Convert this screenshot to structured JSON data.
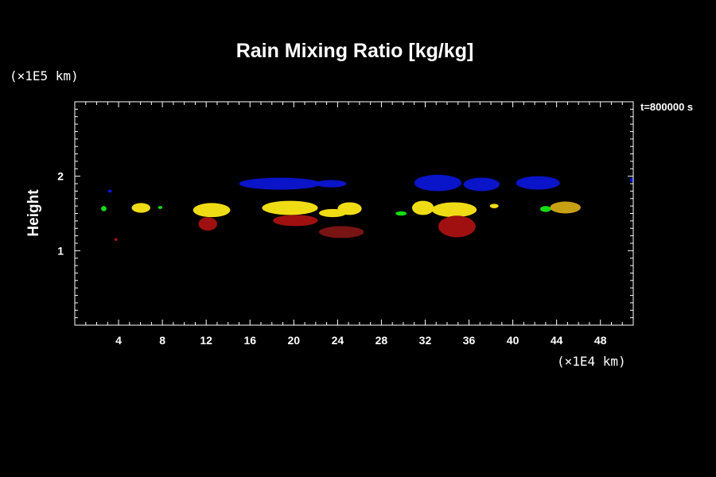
{
  "chart_data": {
    "type": "heatmap",
    "title": "Rain Mixing Ratio [kg/kg]",
    "xlabel": "",
    "ylabel": "Height",
    "x_unit": "(×1E4 km)",
    "y_unit": "(×1E5 km)",
    "time_label": "t=800000 s",
    "xlim": [
      0,
      51
    ],
    "ylim": [
      0,
      3
    ],
    "x_ticks": [
      4,
      8,
      12,
      16,
      20,
      24,
      28,
      32,
      36,
      40,
      44,
      48
    ],
    "y_ticks": [
      1,
      2
    ],
    "colors": {
      "blue": "#0a14c8",
      "green": "#14dc14",
      "yellow": "#f0dc14",
      "gold": "#c8a014",
      "red": "#a01010",
      "darkred": "#781414"
    },
    "blobs": [
      {
        "x": [
          15,
          22.5
        ],
        "y": [
          1.82,
          1.98
        ],
        "color": "blue"
      },
      {
        "x": [
          22,
          24.8
        ],
        "y": [
          1.85,
          1.95
        ],
        "color": "blue"
      },
      {
        "x": [
          31,
          35.3
        ],
        "y": [
          1.8,
          2.02
        ],
        "color": "blue"
      },
      {
        "x": [
          35.5,
          38.8
        ],
        "y": [
          1.8,
          1.98
        ],
        "color": "blue"
      },
      {
        "x": [
          40.3,
          44.3
        ],
        "y": [
          1.82,
          2.0
        ],
        "color": "blue"
      },
      {
        "x": [
          3,
          3.4
        ],
        "y": [
          1.78,
          1.82
        ],
        "color": "blue"
      },
      {
        "x": [
          50.7,
          51
        ],
        "y": [
          1.92,
          1.98
        ],
        "color": "blue"
      },
      {
        "x": [
          2.4,
          2.9
        ],
        "y": [
          1.53,
          1.6
        ],
        "color": "green"
      },
      {
        "x": [
          5.2,
          6.9
        ],
        "y": [
          1.51,
          1.64
        ],
        "color": "yellow"
      },
      {
        "x": [
          7.6,
          8.0
        ],
        "y": [
          1.56,
          1.6
        ],
        "color": "green"
      },
      {
        "x": [
          10.8,
          14.2
        ],
        "y": [
          1.45,
          1.64
        ],
        "color": "yellow"
      },
      {
        "x": [
          11.3,
          13.0
        ],
        "y": [
          1.27,
          1.45
        ],
        "color": "red"
      },
      {
        "x": [
          17.1,
          22.2
        ],
        "y": [
          1.48,
          1.67
        ],
        "color": "yellow"
      },
      {
        "x": [
          18.1,
          22.2
        ],
        "y": [
          1.33,
          1.48
        ],
        "color": "red"
      },
      {
        "x": [
          22.3,
          24.8
        ],
        "y": [
          1.45,
          1.56
        ],
        "color": "yellow"
      },
      {
        "x": [
          24.0,
          26.2
        ],
        "y": [
          1.48,
          1.65
        ],
        "color": "yellow"
      },
      {
        "x": [
          22.3,
          26.4
        ],
        "y": [
          1.17,
          1.33
        ],
        "color": "darkred"
      },
      {
        "x": [
          29.3,
          30.3
        ],
        "y": [
          1.47,
          1.53
        ],
        "color": "green"
      },
      {
        "x": [
          30.8,
          32.8
        ],
        "y": [
          1.48,
          1.67
        ],
        "color": "yellow"
      },
      {
        "x": [
          32.6,
          36.7
        ],
        "y": [
          1.45,
          1.65
        ],
        "color": "yellow"
      },
      {
        "x": [
          33.2,
          36.6
        ],
        "y": [
          1.18,
          1.47
        ],
        "color": "red"
      },
      {
        "x": [
          37.9,
          38.7
        ],
        "y": [
          1.57,
          1.63
        ],
        "color": "yellow"
      },
      {
        "x": [
          42.5,
          43.5
        ],
        "y": [
          1.52,
          1.6
        ],
        "color": "green"
      },
      {
        "x": [
          43.4,
          46.2
        ],
        "y": [
          1.5,
          1.66
        ],
        "color": "gold"
      },
      {
        "x": [
          3.6,
          3.9
        ],
        "y": [
          1.13,
          1.17
        ],
        "color": "red"
      }
    ]
  }
}
